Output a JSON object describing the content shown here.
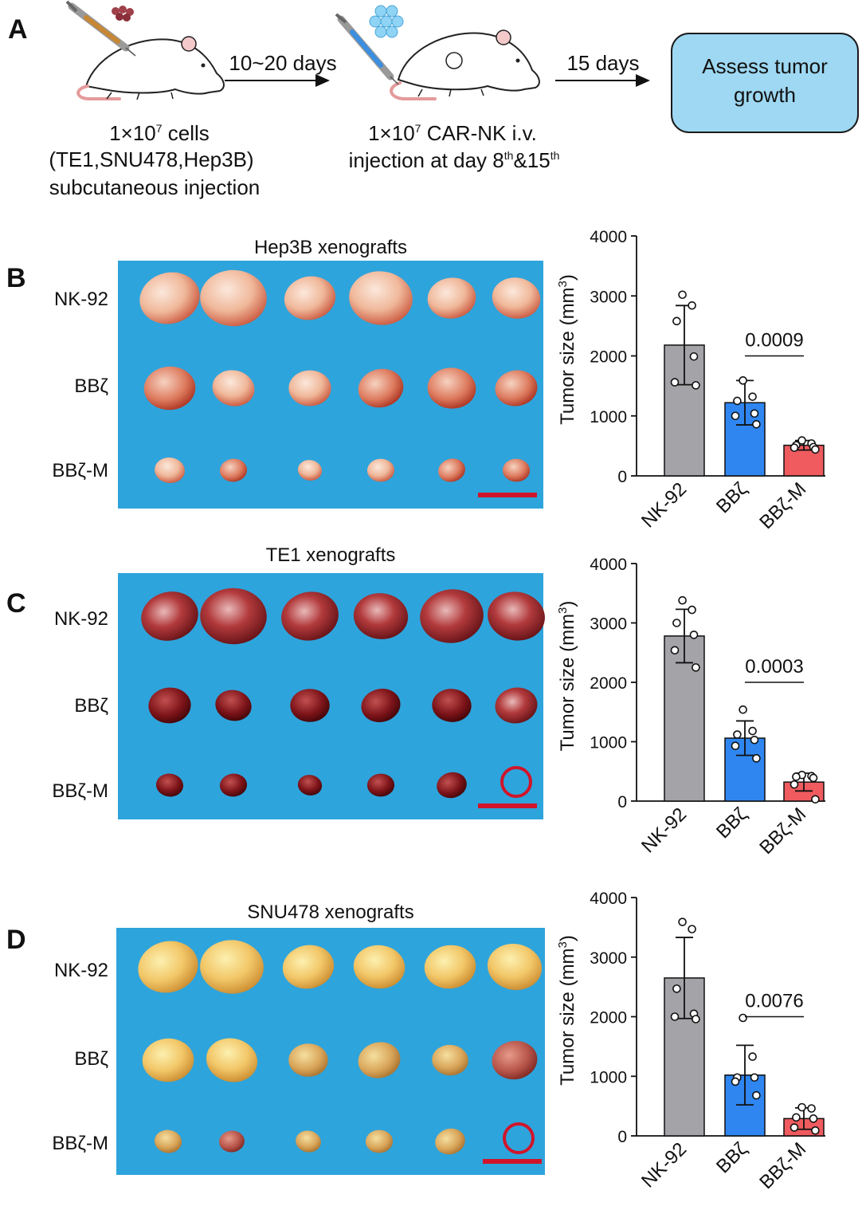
{
  "panelA": {
    "label": "A",
    "step1": {
      "prefix": "1×10",
      "exp": "7",
      "suffix": " cells",
      "line2": "(TE1,SNU478,Hep3B)",
      "line3": "subcutaneous injection"
    },
    "arrow1": "10~20 days",
    "step2": {
      "prefix": "1×10",
      "exp": "7",
      "suffix": " CAR-NK i.v.",
      "line2a": "injection at day 8",
      "sup1": "th",
      "line2b": "&15",
      "sup2": "th"
    },
    "arrow2": "15 days",
    "box": {
      "line1": "Assess tumor",
      "line2": "growth"
    },
    "colors": {
      "box_fill": "#9ed8f2",
      "box_stroke": "#1a1a1a"
    }
  },
  "photo_rows": [
    "NK-92",
    "BBζ",
    "BBζ-M"
  ],
  "photo_colors": {
    "background": "#2ea4dc",
    "scalebar": "#d0152a"
  },
  "bar_colors": [
    "#a3a3a8",
    "#2f86f0",
    "#ef5b5f"
  ],
  "chart_data": [
    {
      "panel": "B",
      "type": "bar",
      "title": "Hep3B xenografts",
      "categories": [
        "NK-92",
        "BBζ",
        "BBζ-M"
      ],
      "values": [
        2180,
        1220,
        510
      ],
      "errors": [
        660,
        370,
        80
      ],
      "points": [
        [
          3020,
          2840,
          2580,
          1990,
          1560,
          1510
        ],
        [
          1590,
          1320,
          1250,
          1040,
          1000,
          860
        ],
        [
          590,
          540,
          510,
          480,
          470,
          440
        ]
      ],
      "ylabel_base": "Tumor size (mm",
      "ylabel_exp": "3",
      "ylabel_close": ")",
      "ylim": [
        0,
        4000
      ],
      "yticks": [
        "0",
        "1000",
        "2000",
        "3000",
        "4000"
      ],
      "comparison": {
        "from": 1,
        "to": 2,
        "label": "0.0009"
      },
      "photo_missing": []
    },
    {
      "panel": "C",
      "type": "bar",
      "title": "TE1 xenografts",
      "categories": [
        "NK-92",
        "BBζ",
        "BBζ-M"
      ],
      "values": [
        2780,
        1060,
        320
      ],
      "errors": [
        450,
        290,
        150
      ],
      "points": [
        [
          3380,
          3220,
          3000,
          2800,
          2540,
          2250
        ],
        [
          1540,
          1180,
          1120,
          1030,
          930,
          720
        ],
        [
          440,
          420,
          410,
          390,
          280,
          30
        ]
      ],
      "ylabel_base": "Tumor size (mm",
      "ylabel_exp": "3",
      "ylabel_close": ")",
      "ylim": [
        0,
        4000
      ],
      "yticks": [
        "0",
        "1000",
        "2000",
        "3000",
        "4000"
      ],
      "comparison": {
        "from": 1,
        "to": 2,
        "label": "0.0003"
      },
      "photo_missing": [
        5
      ]
    },
    {
      "panel": "D",
      "type": "bar",
      "title": "SNU478 xenografts",
      "categories": [
        "NK-92",
        "BBζ",
        "BBζ-M"
      ],
      "values": [
        2650,
        1020,
        290
      ],
      "errors": [
        680,
        500,
        180
      ],
      "points": [
        [
          3590,
          3470,
          2470,
          2050,
          2000,
          1960
        ],
        [
          1980,
          1330,
          980,
          980,
          910,
          680
        ],
        [
          480,
          460,
          310,
          290,
          140,
          90
        ]
      ],
      "ylabel_base": "Tumor size (mm",
      "ylabel_exp": "3",
      "ylabel_close": ")",
      "ylim": [
        0,
        4000
      ],
      "yticks": [
        "0",
        "1000",
        "2000",
        "3000",
        "4000"
      ],
      "comparison": {
        "from": 1,
        "to": 2,
        "label": "0.0076"
      },
      "photo_missing": [
        5
      ]
    }
  ]
}
